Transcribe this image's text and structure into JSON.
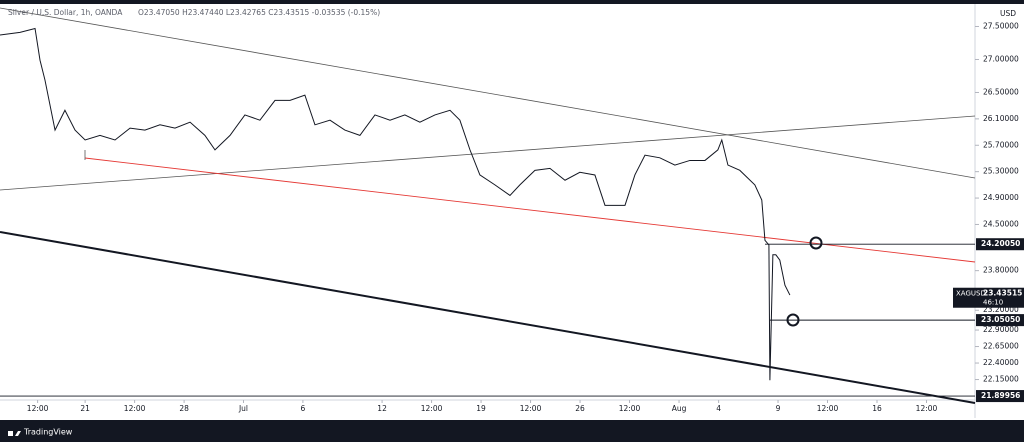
{
  "chart_data": {
    "type": "line",
    "title": "Silver / U.S. Dollar, 1h, OANDA",
    "ohlc": "O23.47050 H23.47440 L23.42765 C23.43515 -0.03535 (-0.15%)",
    "currency": "USD",
    "x": [
      0.7,
      1.71,
      2.47,
      2.72,
      2.97,
      3.48,
      3.98,
      4.49,
      5.0,
      5.75,
      6.51,
      7.27,
      8.02,
      8.78,
      9.54,
      10.3,
      11.05,
      11.56,
      12.32,
      13.07,
      13.83,
      14.59,
      15.35,
      16.1,
      16.61,
      17.37,
      18.12,
      18.88,
      19.64,
      20.4,
      21.15,
      21.91,
      22.67,
      23.43,
      23.93,
      24.44,
      24.94,
      25.7,
      26.46,
      26.96,
      27.72,
      28.48,
      29.24,
      29.99,
      30.75,
      31.26,
      31.76,
      32.27,
      32.77,
      33.28,
      34.03,
      34.79,
      35.55,
      36.31,
      36.96,
      37.16,
      37.47,
      38.07,
      38.83,
      39.18,
      39.34,
      39.54,
      39.59,
      39.74,
      39.89,
      40.09,
      40.35,
      40.6
    ],
    "series": [
      {
        "name": "XAGUSD",
        "color": "#131722",
        "values": [
          27.37,
          27.41,
          27.47,
          26.99,
          26.69,
          25.93,
          26.23,
          25.93,
          25.78,
          25.85,
          25.78,
          25.96,
          25.93,
          26.01,
          25.96,
          26.05,
          25.85,
          25.63,
          25.85,
          26.16,
          26.08,
          26.38,
          26.38,
          26.46,
          26.01,
          26.08,
          25.93,
          25.85,
          26.16,
          26.08,
          26.16,
          26.05,
          26.16,
          26.23,
          26.08,
          25.63,
          25.25,
          25.1,
          24.94,
          25.1,
          25.32,
          25.35,
          25.17,
          25.29,
          25.25,
          24.79,
          24.79,
          24.79,
          25.25,
          25.55,
          25.51,
          25.4,
          25.47,
          25.47,
          25.63,
          25.78,
          25.4,
          25.32,
          25.1,
          24.87,
          24.26,
          24.19,
          22.14,
          24.04,
          24.04,
          23.96,
          23.58,
          23.43
        ]
      }
    ],
    "xlim": [
      0.7,
      49.95
    ],
    "ylim": [
      21.84,
      27.78
    ],
    "xticks": [
      {
        "value": 2.6,
        "label": "12:00"
      },
      {
        "value": 5,
        "label": "21"
      },
      {
        "value": 7.5,
        "label": "12:00"
      },
      {
        "value": 10,
        "label": "28"
      },
      {
        "value": 13,
        "label": "Jul"
      },
      {
        "value": 16,
        "label": "6"
      },
      {
        "value": 20,
        "label": "12"
      },
      {
        "value": 22.5,
        "label": "12:00"
      },
      {
        "value": 25,
        "label": "19"
      },
      {
        "value": 27.5,
        "label": "12:00"
      },
      {
        "value": 30,
        "label": "26"
      },
      {
        "value": 32.5,
        "label": "12:00"
      },
      {
        "value": 35,
        "label": "Aug"
      },
      {
        "value": 37,
        "label": "4"
      },
      {
        "value": 40,
        "label": "9"
      },
      {
        "value": 42.5,
        "label": "12:00"
      },
      {
        "value": 45,
        "label": "16"
      },
      {
        "value": 47.5,
        "label": "12:00"
      }
    ],
    "yticks": [
      {
        "value": 27.5,
        "label": "27.50000"
      },
      {
        "value": 27,
        "label": "27.00000"
      },
      {
        "value": 26.5,
        "label": "26.50000"
      },
      {
        "value": 26.1,
        "label": "26.10000"
      },
      {
        "value": 25.7,
        "label": "25.70000"
      },
      {
        "value": 25.3,
        "label": "25.30000"
      },
      {
        "value": 24.9,
        "label": "24.90000"
      },
      {
        "value": 24.5,
        "label": "24.50000"
      },
      {
        "value": 23.8,
        "label": "23.80000"
      },
      {
        "value": 23.2,
        "label": "23.20000"
      },
      {
        "value": 22.9,
        "label": "22.90000"
      },
      {
        "value": 22.65,
        "label": "22.65000"
      },
      {
        "value": 22.4,
        "label": "22.40000"
      },
      {
        "value": 22.15,
        "label": "22.15000"
      }
    ],
    "price_levels": [
      {
        "value": 24.2005,
        "label": "24.20050"
      },
      {
        "value": 23.0505,
        "label": "23.05050"
      },
      21.89956
    ],
    "last_price": {
      "value": 23.43515,
      "countdown": "46:10"
    },
    "footer": "TradingView"
  }
}
